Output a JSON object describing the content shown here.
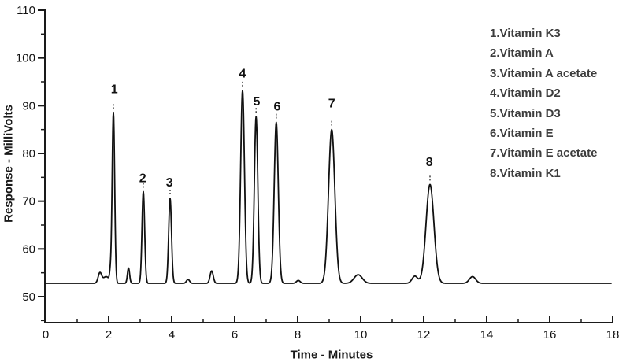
{
  "chart_data": {
    "type": "line",
    "title": "",
    "xlabel": "Time - Minutes",
    "ylabel": "Response - MilliVolts",
    "xlim": [
      0,
      18
    ],
    "ylim": [
      44.6,
      110
    ],
    "grid": false,
    "legend_position": "top-right",
    "x_major_ticks": [
      0,
      2,
      4,
      6,
      8,
      10,
      12,
      14,
      16,
      18
    ],
    "x_minor_ticks": [
      1,
      3,
      5,
      7,
      9,
      11,
      13,
      15,
      17
    ],
    "y_major_ticks": [
      50,
      60,
      70,
      80,
      90,
      100,
      110
    ],
    "y_minor_ticks": [
      45,
      55,
      65,
      75,
      85,
      95,
      105
    ],
    "line_color": "#111111",
    "baseline_mV": 52.8,
    "peaks": [
      {
        "num": "1",
        "name": "Vitamin K3",
        "time_min": 2.15,
        "apex_mV": 88.5,
        "sigma_min": 0.04,
        "label_t": 2.18,
        "label_v": 93.4
      },
      {
        "num": "2",
        "name": "Vitamin A",
        "time_min": 3.1,
        "apex_mV": 72.0,
        "sigma_min": 0.042,
        "label_t": 3.08,
        "label_v": 74.8
      },
      {
        "num": "3",
        "name": "Vitamin A acetate",
        "time_min": 3.95,
        "apex_mV": 70.6,
        "sigma_min": 0.045,
        "label_t": 3.93,
        "label_v": 73.9
      },
      {
        "num": "4",
        "name": "Vitamin D2",
        "time_min": 6.25,
        "apex_mV": 93.2,
        "sigma_min": 0.06,
        "label_t": 6.25,
        "label_v": 96.7
      },
      {
        "num": "5",
        "name": "Vitamin D3",
        "time_min": 6.68,
        "apex_mV": 87.7,
        "sigma_min": 0.055,
        "label_t": 6.7,
        "label_v": 90.9
      },
      {
        "num": "6",
        "name": "Vitamin E",
        "time_min": 7.32,
        "apex_mV": 86.5,
        "sigma_min": 0.065,
        "label_t": 7.35,
        "label_v": 89.8
      },
      {
        "num": "7",
        "name": "Vitamin E acetate",
        "time_min": 9.08,
        "apex_mV": 85.0,
        "sigma_min": 0.1,
        "label_t": 9.08,
        "label_v": 90.5
      },
      {
        "num": "8",
        "name": "Vitamin K1",
        "time_min": 12.2,
        "apex_mV": 73.5,
        "sigma_min": 0.125,
        "label_t": 12.18,
        "label_v": 78.2
      }
    ],
    "minor_features": [
      {
        "time_min": 1.72,
        "apex_mV": 54.9,
        "sigma_min": 0.055
      },
      {
        "time_min": 1.92,
        "apex_mV": 54.2,
        "sigma_min": 0.1
      },
      {
        "time_min": 2.05,
        "apex_mV": 54.5,
        "sigma_min": 0.025
      },
      {
        "time_min": 2.63,
        "apex_mV": 56.0,
        "sigma_min": 0.035
      },
      {
        "time_min": 4.52,
        "apex_mV": 53.6,
        "sigma_min": 0.05
      },
      {
        "time_min": 5.27,
        "apex_mV": 55.4,
        "sigma_min": 0.05
      },
      {
        "time_min": 8.02,
        "apex_mV": 53.4,
        "sigma_min": 0.06
      },
      {
        "time_min": 9.92,
        "apex_mV": 54.6,
        "sigma_min": 0.13
      },
      {
        "time_min": 11.72,
        "apex_mV": 54.3,
        "sigma_min": 0.09
      },
      {
        "time_min": 13.55,
        "apex_mV": 54.2,
        "sigma_min": 0.1
      }
    ],
    "legend": {
      "items": [
        "1.Vitamin K3",
        "2.Vitamin A",
        "3.Vitamin A acetate",
        "4.Vitamin D2",
        "5.Vitamin D3",
        "6.Vitamin E",
        "7.Vitamin E acetate",
        "8.Vitamin K1"
      ]
    }
  }
}
